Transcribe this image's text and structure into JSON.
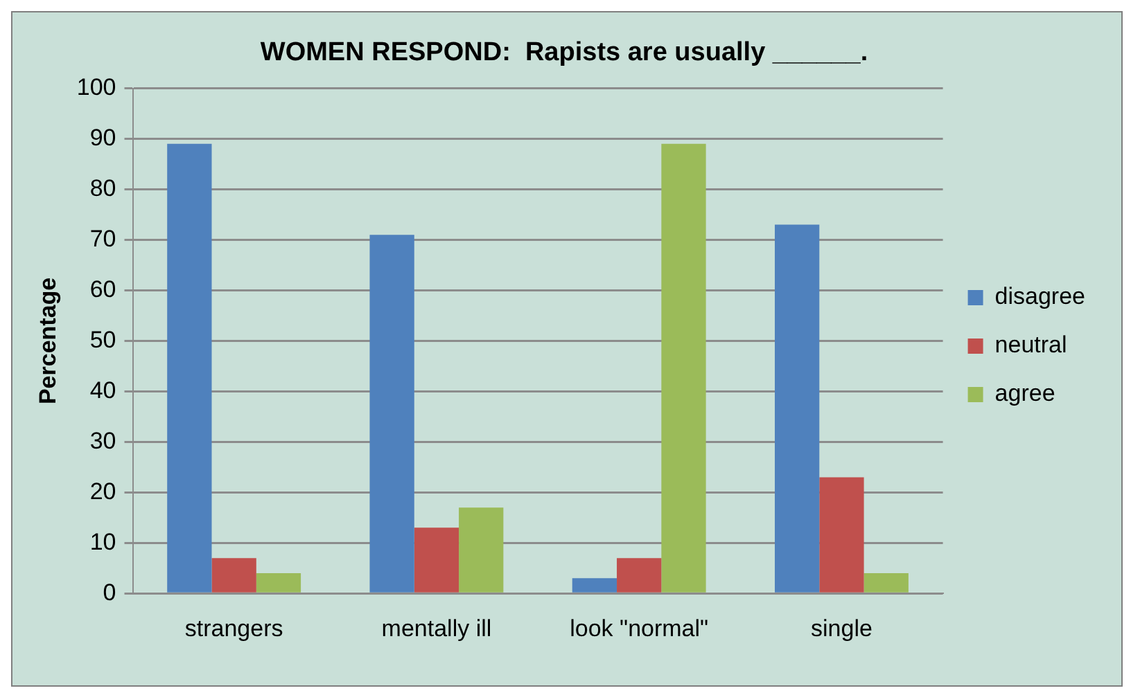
{
  "chart_data": {
    "type": "bar",
    "title": "WOMEN RESPOND:  Rapists are usually ______.",
    "ylabel": "Percentage",
    "categories": [
      "strangers",
      "mentally ill",
      "look \"normal\"",
      "single"
    ],
    "series": [
      {
        "name": "disagree",
        "color": "#4f81bd",
        "values": [
          89,
          71,
          3,
          73
        ]
      },
      {
        "name": "neutral",
        "color": "#c0504d",
        "values": [
          7,
          13,
          7,
          23
        ]
      },
      {
        "name": "agree",
        "color": "#9bbb59",
        "values": [
          4,
          17,
          89,
          4
        ]
      }
    ],
    "ylim": [
      0,
      100
    ],
    "yticks": [
      0,
      10,
      20,
      30,
      40,
      50,
      60,
      70,
      80,
      90,
      100
    ],
    "grid": "y",
    "legend": "right"
  }
}
